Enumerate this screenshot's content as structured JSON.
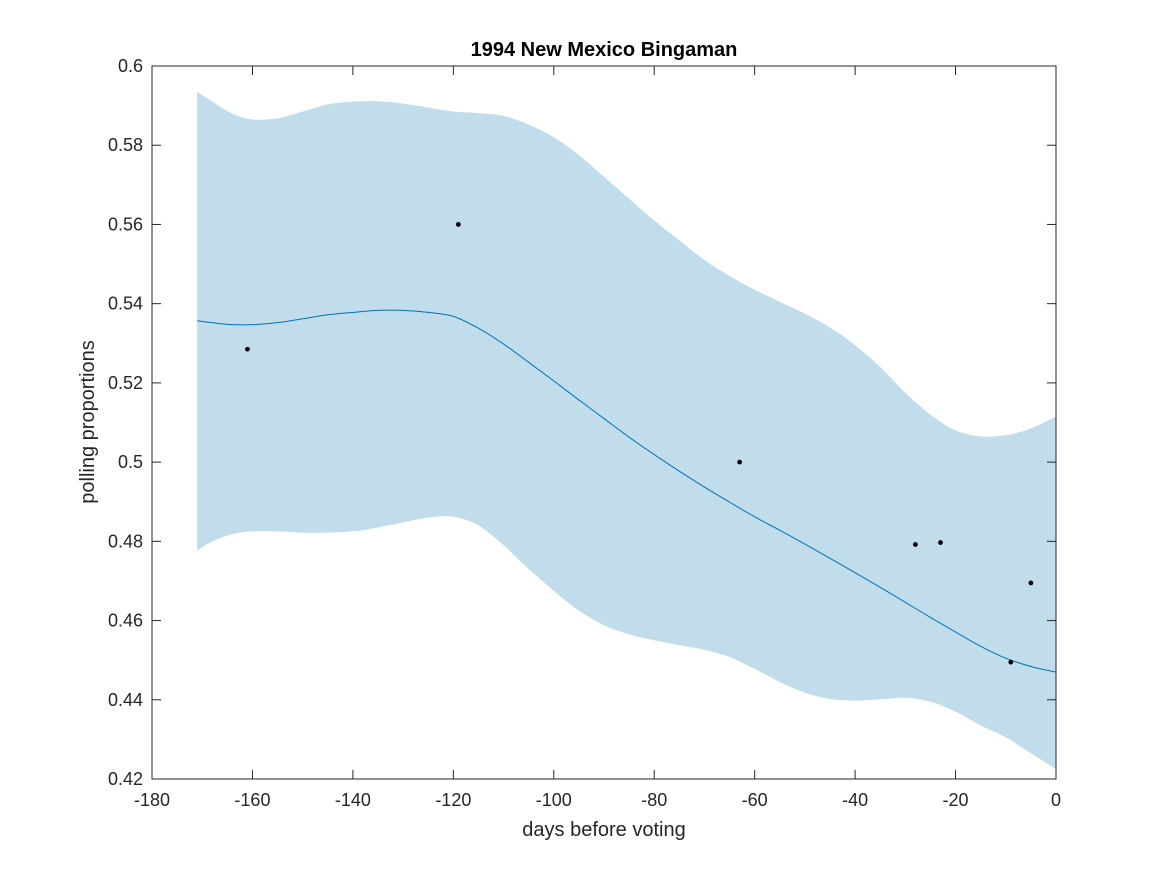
{
  "chart_data": {
    "type": "line",
    "title": "1994 New Mexico Bingaman",
    "xlabel": "days before voting",
    "ylabel": "polling proportions",
    "xlim": [
      -180,
      0
    ],
    "ylim": [
      0.42,
      0.6
    ],
    "xticks": [
      -180,
      -160,
      -140,
      -120,
      -100,
      -80,
      -60,
      -40,
      -20,
      0
    ],
    "xtick_labels": [
      "-180",
      "-160",
      "-140",
      "-120",
      "-100",
      "-80",
      "-60",
      "-40",
      "-20",
      "0"
    ],
    "yticks": [
      0.42,
      0.44,
      0.46,
      0.48,
      0.5,
      0.52,
      0.54,
      0.56,
      0.58,
      0.6
    ],
    "ytick_labels": [
      "0.42",
      "0.44",
      "0.46",
      "0.48",
      "0.5",
      "0.52",
      "0.54",
      "0.56",
      "0.58",
      "0.6"
    ],
    "grid": false,
    "colors": {
      "mean_line": "#0072BD",
      "band_fill": "#C1DDEB",
      "points": "#000000",
      "axes": "#262626"
    },
    "band": {
      "x": [
        -171,
        -168,
        -164,
        -160,
        -155,
        -150,
        -145,
        -140,
        -135,
        -130,
        -125,
        -120,
        -115,
        -110,
        -105,
        -100,
        -95,
        -90,
        -85,
        -80,
        -75,
        -70,
        -65,
        -60,
        -55,
        -50,
        -45,
        -40,
        -35,
        -30,
        -25,
        -20,
        -15,
        -10,
        -5,
        0
      ],
      "upper": [
        0.5935,
        0.591,
        0.588,
        0.5865,
        0.5868,
        0.5885,
        0.5903,
        0.591,
        0.5911,
        0.5905,
        0.5895,
        0.5885,
        0.5881,
        0.5874,
        0.5852,
        0.582,
        0.5775,
        0.572,
        0.5665,
        0.561,
        0.556,
        0.551,
        0.547,
        0.5435,
        0.5405,
        0.5375,
        0.534,
        0.5295,
        0.524,
        0.5175,
        0.512,
        0.508,
        0.5065,
        0.5068,
        0.5085,
        0.5115
      ],
      "lower": [
        0.4777,
        0.48,
        0.4818,
        0.4825,
        0.4825,
        0.4822,
        0.4822,
        0.4825,
        0.4835,
        0.4848,
        0.486,
        0.4862,
        0.484,
        0.479,
        0.473,
        0.4675,
        0.4625,
        0.4588,
        0.4565,
        0.455,
        0.4538,
        0.4526,
        0.4508,
        0.4478,
        0.4445,
        0.4418,
        0.4402,
        0.4398,
        0.4401,
        0.4405,
        0.4395,
        0.437,
        0.4335,
        0.4305,
        0.4265,
        0.4225
      ]
    },
    "series": [
      {
        "x": [
          -171,
          -168,
          -164,
          -160,
          -155,
          -150,
          -145,
          -140,
          -135,
          -130,
          -125,
          -120,
          -115,
          -110,
          -105,
          -100,
          -95,
          -90,
          -85,
          -80,
          -75,
          -70,
          -65,
          -60,
          -55,
          -50,
          -45,
          -40,
          -35,
          -30,
          -25,
          -20,
          -15,
          -10,
          -5,
          0
        ],
        "values": [
          0.5357,
          0.5352,
          0.5347,
          0.5347,
          0.5352,
          0.5362,
          0.5372,
          0.5378,
          0.5383,
          0.5383,
          0.5378,
          0.5368,
          0.5338,
          0.5298,
          0.5252,
          0.5205,
          0.5157,
          0.511,
          0.5063,
          0.5019,
          0.4977,
          0.4937,
          0.4899,
          0.4862,
          0.4828,
          0.4793,
          0.4757,
          0.4721,
          0.4684,
          0.4646,
          0.4608,
          0.4571,
          0.4535,
          0.4505,
          0.4484,
          0.447
        ]
      }
    ],
    "points": {
      "x": [
        -161,
        -119,
        -63,
        -28,
        -23,
        -9,
        -5
      ],
      "y": [
        0.5285,
        0.56,
        0.5,
        0.4792,
        0.4797,
        0.4495,
        0.4695
      ]
    }
  }
}
